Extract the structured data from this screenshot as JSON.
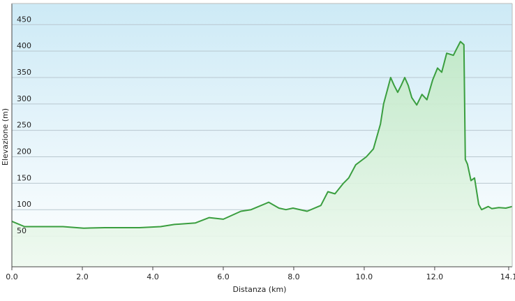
{
  "chart_data": {
    "type": "area",
    "y_label": "Elevazione (m)",
    "x_label": "Distanza  (km)",
    "color": "#3a9e3f",
    "grid": true,
    "xlim": [
      0,
      14.2
    ],
    "ylim": [
      -8,
      490
    ],
    "xticks": [
      {
        "value": 0,
        "label": "0.0"
      },
      {
        "value": 2,
        "label": "2.0"
      },
      {
        "value": 4,
        "label": "4.0"
      },
      {
        "value": 6,
        "label": "6.0"
      },
      {
        "value": 8,
        "label": "8.0"
      },
      {
        "value": 10,
        "label": "10.0"
      },
      {
        "value": 12,
        "label": "12.0"
      },
      14.1
    ],
    "yticks": [
      50,
      100,
      150,
      200,
      250,
      300,
      350,
      400,
      450
    ],
    "x": [
      0,
      0.36,
      0.65,
      1.45,
      2.04,
      2.63,
      3.62,
      4.22,
      4.61,
      5.21,
      5.6,
      6.0,
      6.5,
      6.79,
      7.29,
      7.58,
      7.78,
      7.98,
      8.38,
      8.77,
      8.97,
      9.17,
      9.41,
      9.56,
      9.76,
      10.06,
      10.26,
      10.46,
      10.55,
      10.65,
      10.75,
      10.85,
      10.95,
      11.05,
      11.15,
      11.25,
      11.35,
      11.49,
      11.64,
      11.78,
      11.94,
      12.08,
      12.2,
      12.34,
      12.53,
      12.63,
      12.73,
      12.83,
      12.87,
      12.93,
      13.03,
      13.13,
      13.25,
      13.33,
      13.52,
      13.62,
      13.82,
      14.02,
      14.2
    ],
    "values": [
      78,
      68,
      68,
      68,
      65,
      66,
      66,
      68,
      72,
      75,
      85,
      82,
      97,
      100,
      114,
      103,
      100,
      103,
      97,
      108,
      134,
      130,
      150,
      160,
      185,
      200,
      215,
      262,
      300,
      325,
      350,
      335,
      322,
      335,
      350,
      335,
      312,
      298,
      318,
      308,
      345,
      368,
      360,
      396,
      392,
      405,
      418,
      412,
      195,
      186,
      155,
      160,
      110,
      100,
      106,
      102,
      104,
      103,
      106
    ]
  }
}
